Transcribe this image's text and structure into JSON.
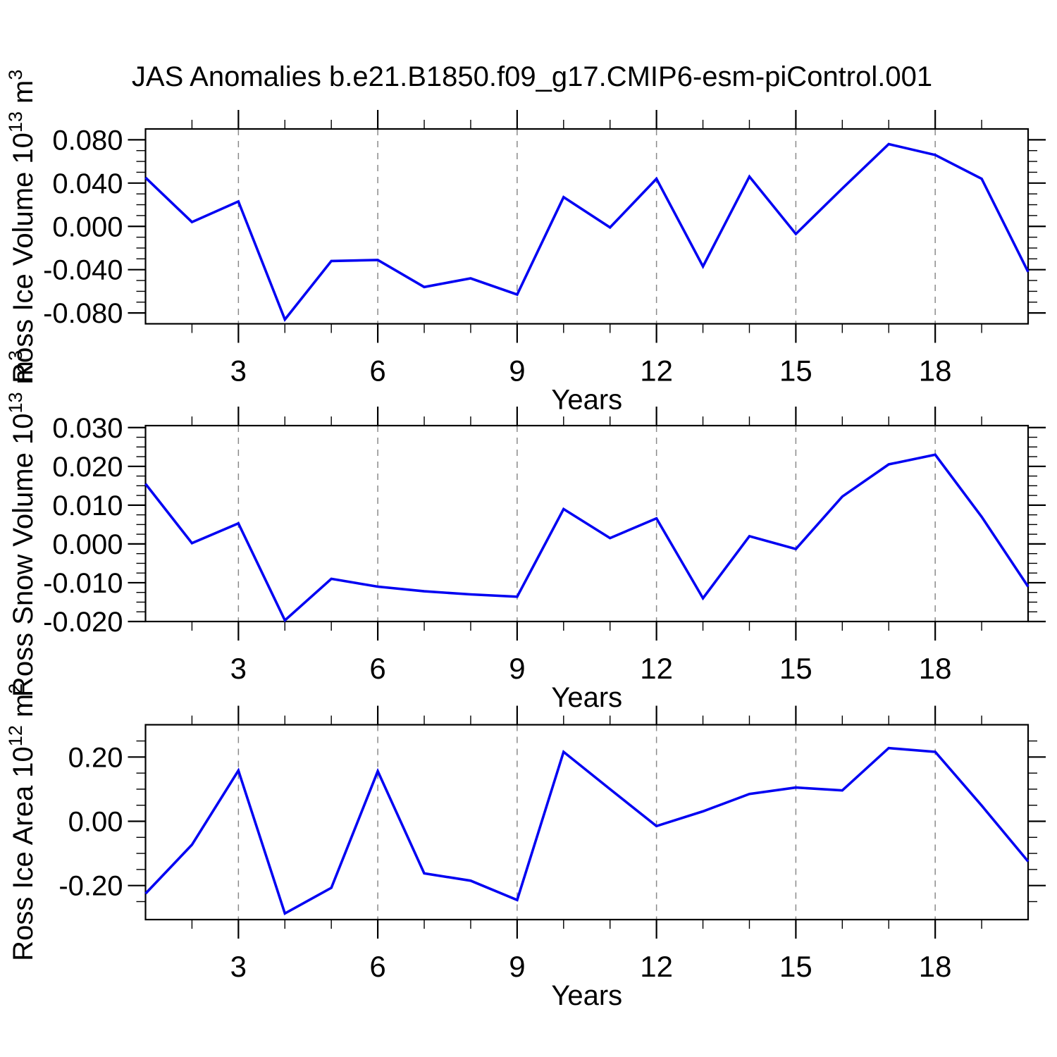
{
  "title": "JAS Anomalies b.e21.B1850.f09_g17.CMIP6-esm-piControl.001",
  "colors": {
    "line": "#0202f2",
    "grid": "#8a8a8a",
    "axis": "#000000",
    "background": "#ffffff"
  },
  "chart_data": [
    {
      "type": "line",
      "name": "ross-ice-volume",
      "ylabel_parts": [
        {
          "t": "Ross Ice Volume 10"
        },
        {
          "t": "13",
          "sup": true
        },
        {
          "t": " m"
        },
        {
          "t": "3",
          "sup": true
        }
      ],
      "xlabel": "Years",
      "x": [
        1,
        2,
        3,
        4,
        5,
        6,
        7,
        8,
        9,
        10,
        11,
        12,
        13,
        14,
        15,
        16,
        17,
        18,
        19,
        20
      ],
      "values": [
        0.045,
        0.004,
        0.023,
        -0.086,
        -0.032,
        -0.031,
        -0.056,
        -0.048,
        -0.063,
        0.027,
        -0.001,
        0.044,
        -0.037,
        0.046,
        -0.007,
        0.035,
        0.076,
        0.066,
        0.044,
        -0.042
      ],
      "xlim": [
        1,
        20
      ],
      "ylim": [
        -0.09,
        0.09
      ],
      "xticks": [
        {
          "v": 3,
          "label": "3"
        },
        {
          "v": 6,
          "label": "6"
        },
        {
          "v": 9,
          "label": "9"
        },
        {
          "v": 12,
          "label": "12"
        },
        {
          "v": 15,
          "label": "15"
        },
        {
          "v": 18,
          "label": "18"
        }
      ],
      "x_minor_step": 1,
      "yticks": [
        {
          "v": 0.08,
          "label": "0.080"
        },
        {
          "v": 0.04,
          "label": "0.040"
        },
        {
          "v": 0.0,
          "label": "0.000"
        },
        {
          "v": -0.04,
          "label": "-0.040"
        },
        {
          "v": -0.08,
          "label": "-0.080"
        }
      ],
      "y_minor_step": 0.01,
      "grid": "x-dashed",
      "legend": null
    },
    {
      "type": "line",
      "name": "ross-snow-volume",
      "ylabel_parts": [
        {
          "t": "Ross Snow Volume 10"
        },
        {
          "t": "13",
          "sup": true
        },
        {
          "t": " m"
        },
        {
          "t": "3",
          "sup": true
        }
      ],
      "xlabel": "Years",
      "x": [
        1,
        2,
        3,
        4,
        5,
        6,
        7,
        8,
        9,
        10,
        11,
        12,
        13,
        14,
        15,
        16,
        17,
        18,
        19,
        20
      ],
      "values": [
        0.0155,
        0.0002,
        0.0053,
        -0.0197,
        -0.009,
        -0.011,
        -0.0122,
        -0.013,
        -0.0136,
        0.009,
        0.0015,
        0.0066,
        -0.014,
        0.002,
        -0.0013,
        0.0122,
        0.0205,
        0.023,
        0.007,
        -0.011
      ],
      "xlim": [
        1,
        20
      ],
      "ylim": [
        -0.02,
        0.0305
      ],
      "xticks": [
        {
          "v": 3,
          "label": "3"
        },
        {
          "v": 6,
          "label": "6"
        },
        {
          "v": 9,
          "label": "9"
        },
        {
          "v": 12,
          "label": "12"
        },
        {
          "v": 15,
          "label": "15"
        },
        {
          "v": 18,
          "label": "18"
        }
      ],
      "x_minor_step": 1,
      "yticks": [
        {
          "v": 0.03,
          "label": "0.030"
        },
        {
          "v": 0.02,
          "label": "0.020"
        },
        {
          "v": 0.01,
          "label": "0.010"
        },
        {
          "v": 0.0,
          "label": "0.000"
        },
        {
          "v": -0.01,
          "label": "-0.010"
        },
        {
          "v": -0.02,
          "label": "-0.020"
        }
      ],
      "y_minor_step": 0.0025,
      "grid": "x-dashed",
      "legend": null
    },
    {
      "type": "line",
      "name": "ross-ice-area",
      "ylabel_parts": [
        {
          "t": "Ross Ice Area 10"
        },
        {
          "t": "12",
          "sup": true
        },
        {
          "t": " m"
        },
        {
          "t": "2",
          "sup": true
        }
      ],
      "xlabel": "Years",
      "x": [
        1,
        2,
        3,
        4,
        5,
        6,
        7,
        8,
        9,
        10,
        11,
        12,
        13,
        14,
        15,
        16,
        17,
        18,
        19,
        20
      ],
      "values": [
        -0.225,
        -0.073,
        0.158,
        -0.287,
        -0.207,
        0.156,
        -0.162,
        -0.185,
        -0.245,
        0.216,
        0.1,
        -0.015,
        0.031,
        0.085,
        0.105,
        0.096,
        0.228,
        0.216,
        0.049,
        -0.125
      ],
      "xlim": [
        1,
        20
      ],
      "ylim": [
        -0.306,
        0.3005
      ],
      "xticks": [
        {
          "v": 3,
          "label": "3"
        },
        {
          "v": 6,
          "label": "6"
        },
        {
          "v": 9,
          "label": "9"
        },
        {
          "v": 12,
          "label": "12"
        },
        {
          "v": 15,
          "label": "15"
        },
        {
          "v": 18,
          "label": "18"
        }
      ],
      "x_minor_step": 1,
      "yticks": [
        {
          "v": 0.2,
          "label": "0.20"
        },
        {
          "v": 0.0,
          "label": "0.00"
        },
        {
          "v": -0.2,
          "label": "-0.20"
        }
      ],
      "y_minor_step": 0.05,
      "grid": "x-dashed",
      "legend": null
    }
  ]
}
